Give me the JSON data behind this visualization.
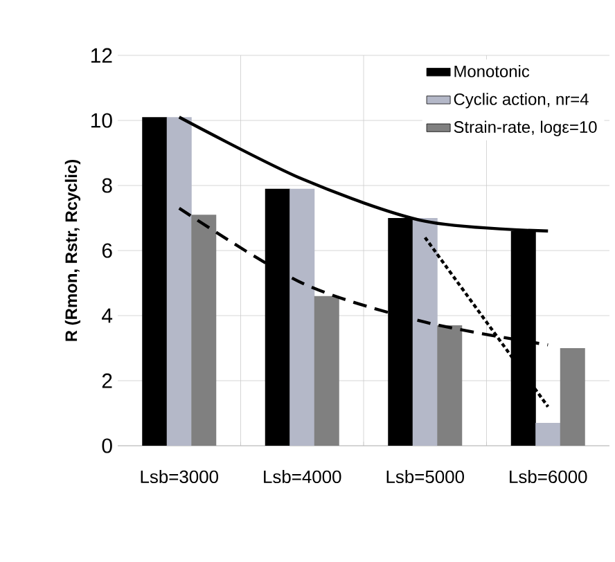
{
  "chart_data": {
    "type": "bar",
    "ylabel": "R (Rmon, Rstr, Rcyclic)",
    "categories": [
      "Lsb=3000",
      "Lsb=4000",
      "Lsb=5000",
      "Lsb=6000"
    ],
    "series": [
      {
        "name": "Monotonic",
        "color": "#000000",
        "values": [
          10.1,
          7.9,
          7.0,
          6.6
        ]
      },
      {
        "name": "Cyclic action, nr=4",
        "color": "#b4b8c8",
        "values": [
          10.1,
          7.9,
          7.0,
          0.7
        ]
      },
      {
        "name": "Strain-rate, logε=10",
        "color": "#808080",
        "values": [
          7.1,
          4.6,
          3.7,
          3.0
        ]
      },
      {
        "type": "line",
        "color": "#000000",
        "line_style": "solid",
        "values": [
          10.1,
          8.2,
          6.9,
          6.6
        ]
      },
      {
        "type": "line",
        "color": "#000000",
        "line_style": "dashed",
        "values": [
          7.3,
          5.0,
          3.8,
          3.1
        ]
      },
      {
        "type": "line",
        "color": "#000000",
        "line_style": "dotted",
        "values": [
          null,
          null,
          6.4,
          1.2
        ]
      }
    ],
    "ylim": [
      0,
      12
    ],
    "yticks": [
      0,
      2,
      4,
      6,
      8,
      10,
      12
    ],
    "grid": true,
    "legend": "top right"
  }
}
